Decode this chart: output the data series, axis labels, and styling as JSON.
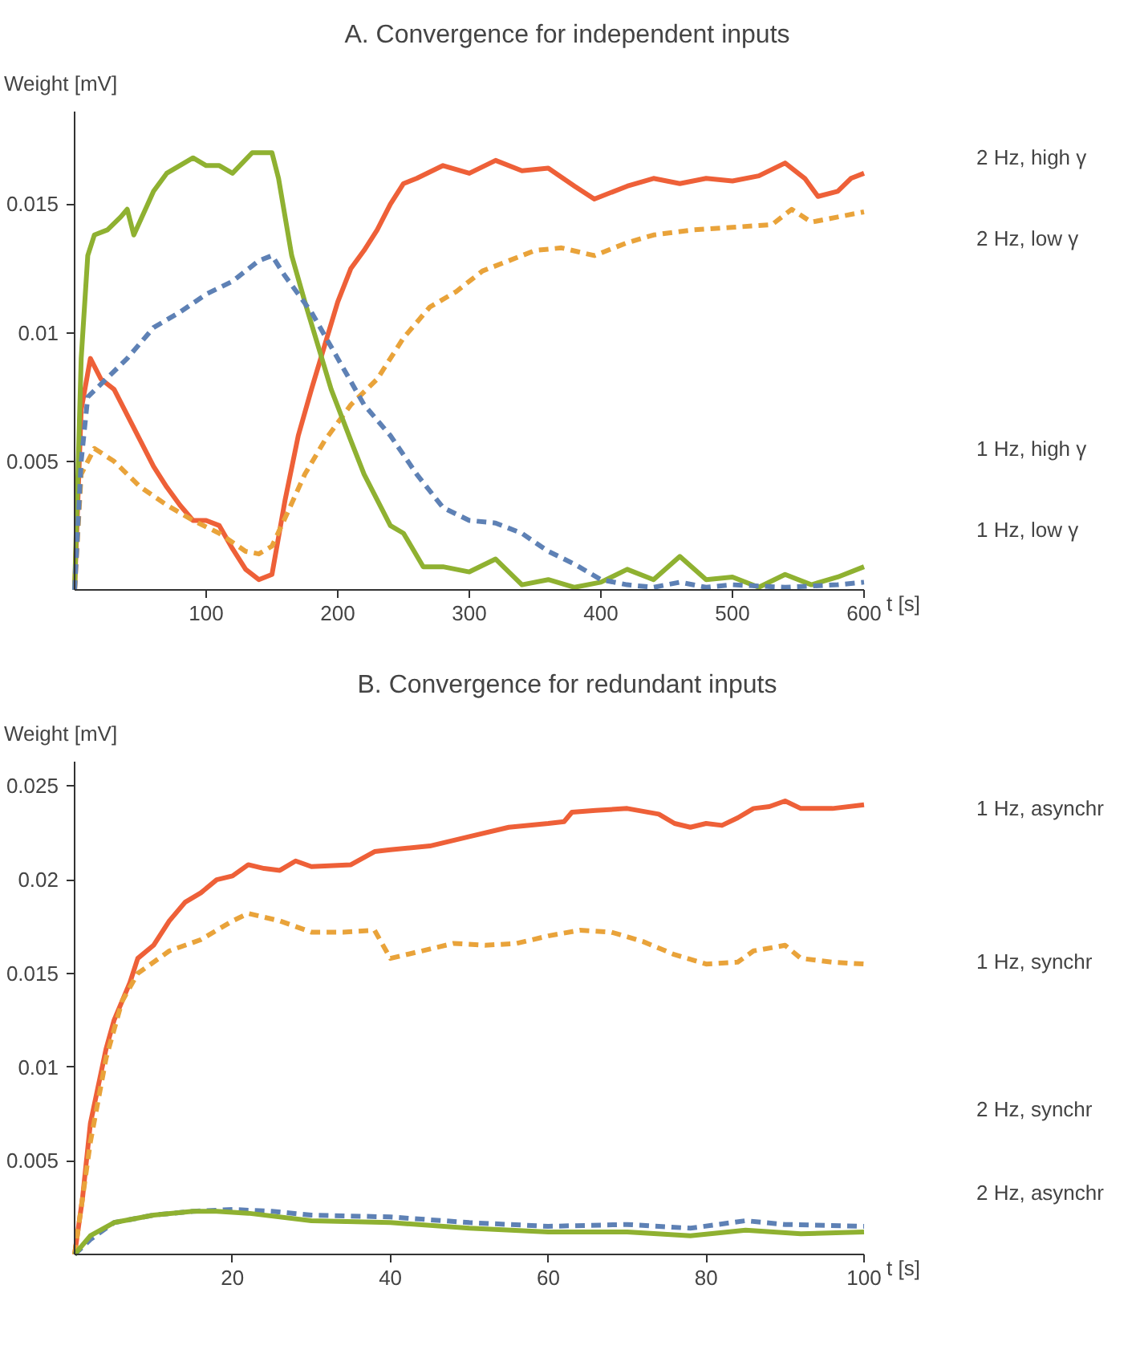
{
  "chart_data": [
    {
      "type": "line",
      "title": "A. Convergence for independent inputs",
      "xlabel": "t [s]",
      "ylabel": "Weight [mV]",
      "xlim": [
        0,
        600
      ],
      "ylim": [
        0,
        0.0186
      ],
      "xticks": [
        100,
        200,
        300,
        400,
        500,
        600
      ],
      "yticks": [
        0.005,
        0.01,
        0.015
      ],
      "grid": false,
      "legend": false,
      "series": [
        {
          "name": "2 Hz, high γ",
          "color": "#ee6038",
          "line_style": "solid",
          "x": [
            0,
            5,
            12,
            20,
            30,
            40,
            50,
            60,
            70,
            80,
            90,
            100,
            110,
            120,
            130,
            140,
            150,
            160,
            170,
            180,
            190,
            200,
            210,
            220,
            230,
            240,
            250,
            260,
            280,
            300,
            320,
            340,
            360,
            380,
            395,
            420,
            440,
            460,
            480,
            500,
            520,
            540,
            555,
            565,
            580,
            590,
            600
          ],
          "values": [
            0,
            0.007,
            0.009,
            0.0082,
            0.0078,
            0.0068,
            0.0058,
            0.0048,
            0.004,
            0.0033,
            0.0027,
            0.0027,
            0.0025,
            0.0016,
            0.0008,
            0.0004,
            0.0006,
            0.0035,
            0.006,
            0.0078,
            0.0095,
            0.0112,
            0.0125,
            0.0132,
            0.014,
            0.015,
            0.0158,
            0.016,
            0.0165,
            0.0162,
            0.0167,
            0.0163,
            0.0164,
            0.0157,
            0.0152,
            0.0157,
            0.016,
            0.0158,
            0.016,
            0.0159,
            0.0161,
            0.0166,
            0.016,
            0.0153,
            0.0155,
            0.016,
            0.0162
          ]
        },
        {
          "name": "2 Hz, low γ",
          "color": "#e9a33a",
          "line_style": "dashed",
          "x": [
            0,
            5,
            15,
            30,
            50,
            70,
            90,
            110,
            130,
            140,
            150,
            160,
            175,
            190,
            210,
            230,
            250,
            270,
            290,
            310,
            330,
            350,
            370,
            395,
            420,
            440,
            470,
            500,
            530,
            545,
            560,
            580,
            600
          ],
          "values": [
            0,
            0.0045,
            0.0055,
            0.005,
            0.004,
            0.0033,
            0.0027,
            0.0022,
            0.0015,
            0.0014,
            0.0017,
            0.0028,
            0.0045,
            0.0058,
            0.0072,
            0.0082,
            0.0098,
            0.011,
            0.0116,
            0.0124,
            0.0128,
            0.0132,
            0.0133,
            0.013,
            0.0135,
            0.0138,
            0.014,
            0.0141,
            0.0142,
            0.0148,
            0.0143,
            0.0145,
            0.0147
          ]
        },
        {
          "name": "1 Hz, high γ",
          "color": "#8fb131",
          "line_style": "solid",
          "x": [
            0,
            5,
            10,
            15,
            25,
            35,
            40,
            45,
            60,
            70,
            90,
            100,
            110,
            120,
            135,
            150,
            155,
            165,
            175,
            185,
            195,
            210,
            220,
            240,
            250,
            265,
            280,
            300,
            320,
            340,
            360,
            380,
            400,
            420,
            440,
            460,
            480,
            500,
            520,
            540,
            560,
            580,
            600
          ],
          "values": [
            0,
            0.009,
            0.013,
            0.0138,
            0.014,
            0.0145,
            0.0148,
            0.0138,
            0.0155,
            0.0162,
            0.0168,
            0.0165,
            0.0165,
            0.0162,
            0.017,
            0.017,
            0.016,
            0.013,
            0.0112,
            0.0095,
            0.0078,
            0.0058,
            0.0045,
            0.0025,
            0.0022,
            0.0009,
            0.0009,
            0.0007,
            0.0012,
            0.0002,
            0.0004,
            0.0001,
            0.0003,
            0.0008,
            0.0004,
            0.0013,
            0.0004,
            0.0005,
            0.0001,
            0.0006,
            0.0002,
            0.0005,
            0.0009
          ]
        },
        {
          "name": "1 Hz, low γ",
          "color": "#5e81b5",
          "line_style": "dashed",
          "x": [
            0,
            5,
            10,
            20,
            40,
            60,
            80,
            100,
            120,
            140,
            150,
            160,
            180,
            200,
            220,
            240,
            260,
            280,
            300,
            320,
            340,
            360,
            380,
            400,
            420,
            440,
            460,
            480,
            500,
            540,
            580,
            600
          ],
          "values": [
            0,
            0.005,
            0.0075,
            0.008,
            0.009,
            0.0102,
            0.0108,
            0.0115,
            0.012,
            0.0128,
            0.013,
            0.0122,
            0.0108,
            0.009,
            0.0072,
            0.006,
            0.0045,
            0.0032,
            0.0027,
            0.0026,
            0.0022,
            0.0015,
            0.001,
            0.0004,
            0.0002,
            0.0001,
            0.0003,
            0.0001,
            0.0002,
            0.0001,
            0.0002,
            0.0003
          ]
        }
      ]
    },
    {
      "type": "line",
      "title": "B. Convergence for redundant inputs",
      "xlabel": "t [s]",
      "ylabel": "Weight [mV]",
      "xlim": [
        0,
        100
      ],
      "ylim": [
        0,
        0.0263
      ],
      "xticks": [
        20,
        40,
        60,
        80,
        100
      ],
      "yticks": [
        0.005,
        0.01,
        0.015,
        0.02,
        0.025
      ],
      "grid": false,
      "legend": false,
      "series": [
        {
          "name": "1 Hz, asynchr",
          "color": "#ee6038",
          "line_style": "solid",
          "x": [
            0,
            1,
            2,
            4,
            5,
            7,
            8,
            10,
            12,
            14,
            16,
            18,
            20,
            22,
            24,
            26,
            28,
            30,
            35,
            38,
            40,
            45,
            50,
            55,
            60,
            62,
            63,
            66,
            70,
            74,
            76,
            78,
            80,
            82,
            84,
            86,
            88,
            90,
            92,
            96,
            100
          ],
          "values": [
            0,
            0.003,
            0.007,
            0.011,
            0.0125,
            0.0145,
            0.0158,
            0.0165,
            0.0178,
            0.0188,
            0.0193,
            0.02,
            0.0202,
            0.0208,
            0.0206,
            0.0205,
            0.021,
            0.0207,
            0.0208,
            0.0215,
            0.0216,
            0.0218,
            0.0223,
            0.0228,
            0.023,
            0.0231,
            0.0236,
            0.0237,
            0.0238,
            0.0235,
            0.023,
            0.0228,
            0.023,
            0.0229,
            0.0233,
            0.0238,
            0.0239,
            0.0242,
            0.0238,
            0.0238,
            0.024
          ]
        },
        {
          "name": "1 Hz, synchr",
          "color": "#e9a33a",
          "line_style": "dashed",
          "x": [
            0,
            2,
            4,
            6,
            8,
            12,
            16,
            20,
            22,
            26,
            30,
            34,
            38,
            40,
            44,
            48,
            52,
            56,
            60,
            64,
            68,
            72,
            76,
            80,
            84,
            86,
            90,
            92,
            96,
            100
          ],
          "values": [
            0,
            0.006,
            0.0105,
            0.0135,
            0.015,
            0.0162,
            0.0168,
            0.0178,
            0.0182,
            0.0178,
            0.0172,
            0.0172,
            0.0173,
            0.0158,
            0.0162,
            0.0166,
            0.0165,
            0.0166,
            0.017,
            0.0173,
            0.0172,
            0.0167,
            0.016,
            0.0155,
            0.0156,
            0.0162,
            0.0165,
            0.0158,
            0.0156,
            0.0155
          ]
        },
        {
          "name": "2 Hz, synchr",
          "color": "#5e81b5",
          "line_style": "dashed",
          "x": [
            0,
            2,
            5,
            10,
            15,
            20,
            25,
            30,
            40,
            50,
            60,
            70,
            78,
            85,
            90,
            100
          ],
          "values": [
            0,
            0.0008,
            0.0017,
            0.0021,
            0.0023,
            0.0024,
            0.0023,
            0.0021,
            0.002,
            0.0017,
            0.0015,
            0.0016,
            0.0014,
            0.0018,
            0.0016,
            0.0015
          ]
        },
        {
          "name": "2 Hz, asynchr",
          "color": "#8fb131",
          "line_style": "solid",
          "x": [
            0,
            2,
            5,
            10,
            15,
            18,
            22,
            30,
            40,
            50,
            60,
            70,
            78,
            85,
            92,
            100
          ],
          "values": [
            0,
            0.001,
            0.0017,
            0.0021,
            0.0023,
            0.0023,
            0.0022,
            0.0018,
            0.0017,
            0.0014,
            0.0012,
            0.0012,
            0.001,
            0.0013,
            0.0011,
            0.0012
          ]
        }
      ]
    }
  ]
}
